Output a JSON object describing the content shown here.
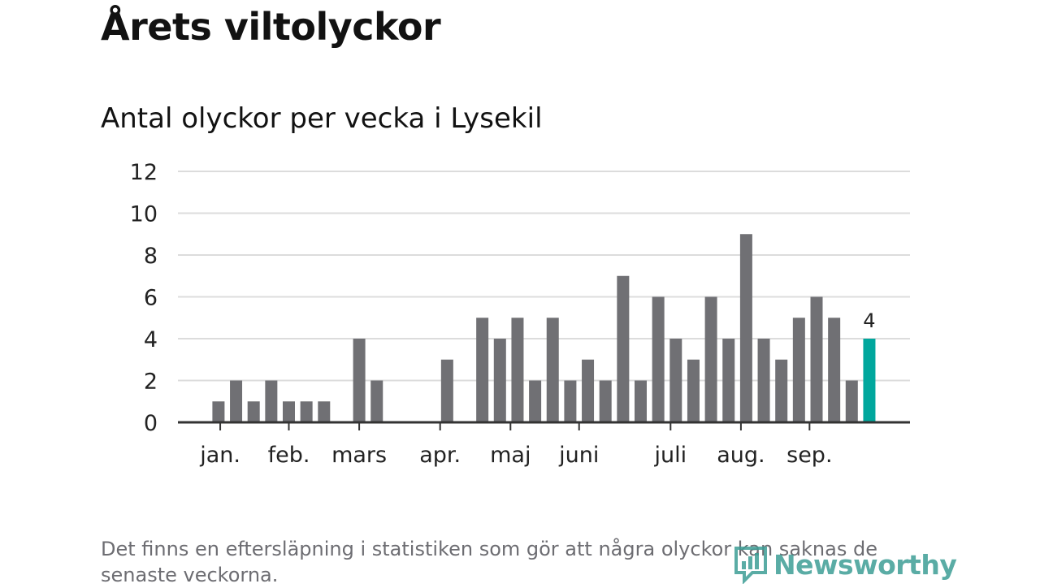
{
  "title": "Årets viltolyckor",
  "subtitle": "Antal olyckor per vecka i Lysekil",
  "note": "Det finns en eftersläpning i statistiken som gör att några olyckor kan saknas de senaste veckorna.",
  "brand": {
    "name": "Newsworthy",
    "color": "#3e9e96"
  },
  "colors": {
    "bar": "#707074",
    "highlight": "#00a79d",
    "grid": "#dcdcdc",
    "axis": "#333333",
    "text": "#222222"
  },
  "chart_data": {
    "type": "bar",
    "title": "Antal olyckor per vecka i Lysekil",
    "xlabel": "",
    "ylabel": "",
    "ylim": [
      0,
      12
    ],
    "yticks": [
      "0",
      "2",
      "4",
      "6",
      "8",
      "10",
      "12"
    ],
    "grid": true,
    "weeks": [
      1,
      2,
      3,
      4,
      5,
      6,
      7,
      8,
      9,
      10,
      11,
      12,
      13,
      14,
      15,
      16,
      17,
      18,
      19,
      20,
      21,
      22,
      23,
      24,
      25,
      26,
      27,
      28,
      29,
      30,
      31,
      32,
      33,
      34,
      35,
      36,
      37,
      38,
      39,
      40,
      41,
      42
    ],
    "values": [
      0,
      0,
      1,
      2,
      1,
      2,
      1,
      1,
      1,
      0,
      4,
      2,
      0,
      0,
      0,
      3,
      0,
      5,
      4,
      5,
      2,
      5,
      2,
      3,
      2,
      7,
      2,
      6,
      4,
      3,
      6,
      4,
      9,
      4,
      3,
      5,
      6,
      5,
      2,
      4,
      0,
      0
    ],
    "highlight_week": 40,
    "highlight_label": "4",
    "months": [
      {
        "label": "jan.",
        "week": 3.1
      },
      {
        "label": "feb.",
        "week": 7.0
      },
      {
        "label": "mars",
        "week": 11.0
      },
      {
        "label": "apr.",
        "week": 15.6
      },
      {
        "label": "maj",
        "week": 19.6
      },
      {
        "label": "juni",
        "week": 23.5
      },
      {
        "label": "juli",
        "week": 28.7
      },
      {
        "label": "aug.",
        "week": 32.7
      },
      {
        "label": "sep.",
        "week": 36.6
      }
    ]
  }
}
